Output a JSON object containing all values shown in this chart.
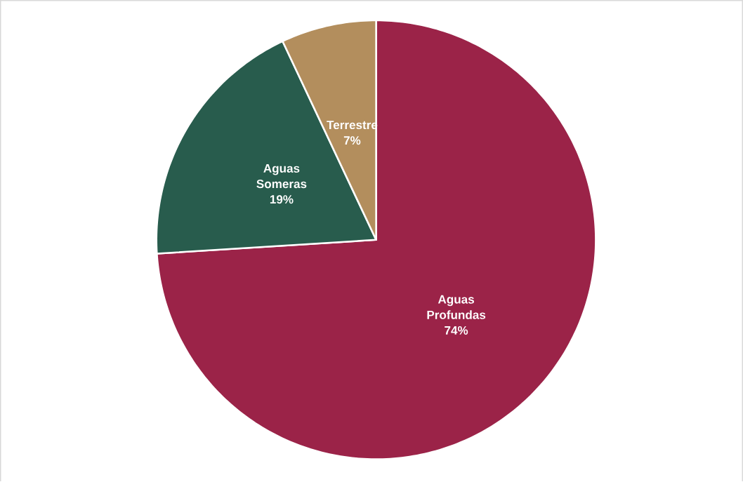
{
  "chart_data": {
    "type": "pie",
    "categories": [
      "Aguas Profundas",
      "Aguas Someras",
      "Terrestre"
    ],
    "values": [
      74,
      19,
      7
    ],
    "value_labels": [
      "74%",
      "19%",
      "7%"
    ],
    "colors": [
      "#9b2348",
      "#285c4d",
      "#b38e5d"
    ]
  }
}
